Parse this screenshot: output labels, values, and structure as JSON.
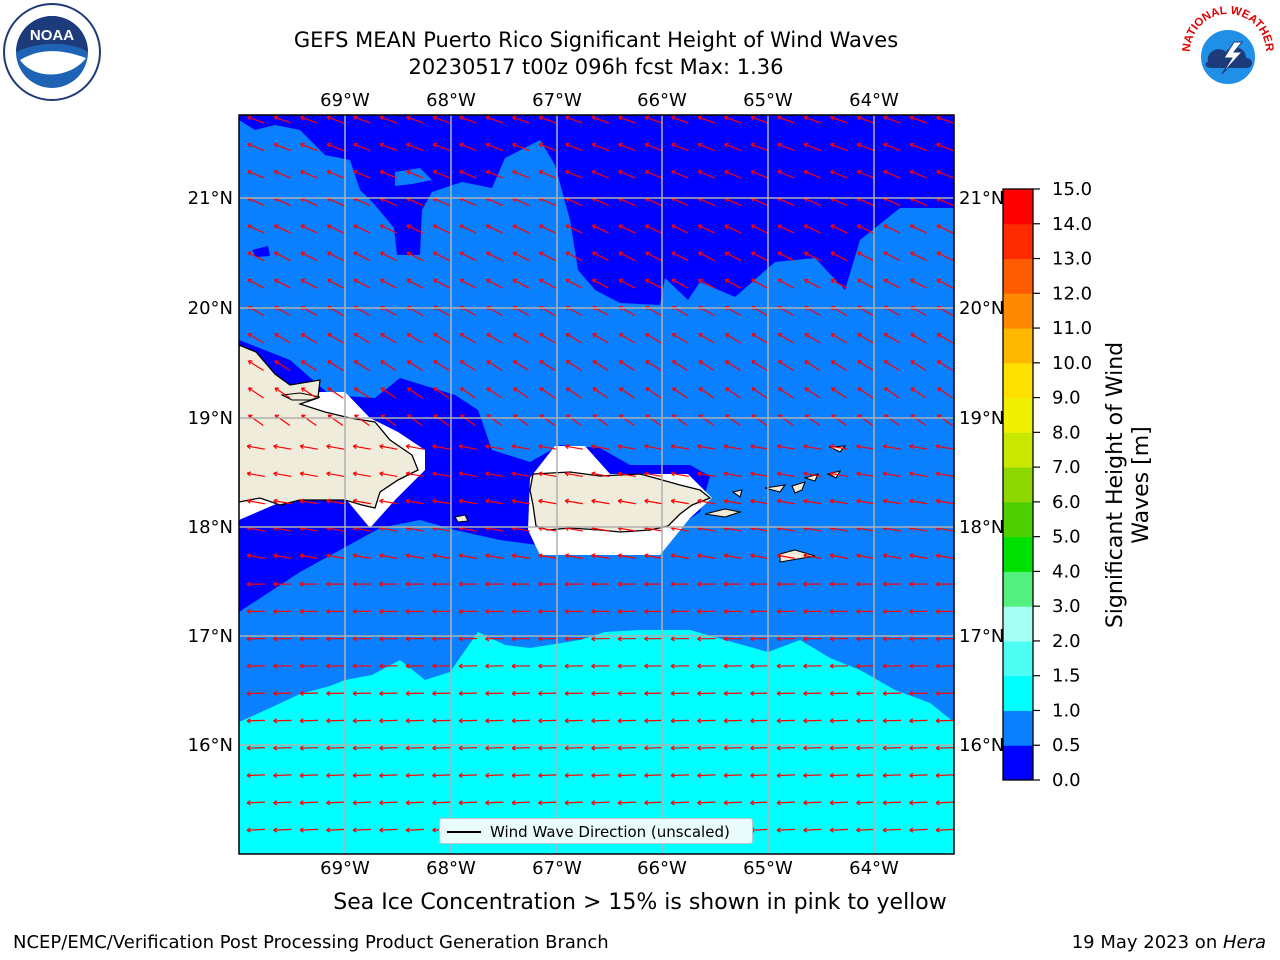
{
  "title": {
    "line1": "GEFS MEAN Puerto Rico Significant Height of Wind Waves",
    "line2": "20230517 t00z 096h fcst   Max: 1.36"
  },
  "map": {
    "lon_labels": [
      "69°W",
      "68°W",
      "67°W",
      "66°W",
      "65°W",
      "64°W"
    ],
    "lat_labels": [
      "21°N",
      "20°N",
      "19°N",
      "18°N",
      "17°N",
      "16°N"
    ],
    "legend_label": "Wind Wave Direction (unscaled)",
    "colors": {
      "band_0_0_5": "#0000ff",
      "band_0_5_1_0": "#0a80ff",
      "band_1_0_1_5": "#00ffff",
      "land": "#efecdc",
      "arrow": "#ff0000",
      "grid": "#b0b0b0"
    }
  },
  "colorbar": {
    "title": "Significant Height of Wind Waves [m]",
    "ticks": [
      "15.0",
      "14.0",
      "13.0",
      "12.0",
      "11.0",
      "10.0",
      "9.0",
      "8.0",
      "7.0",
      "6.0",
      "5.0",
      "4.0",
      "3.0",
      "2.0",
      "1.5",
      "1.0",
      "0.5",
      "0.0"
    ],
    "colors": [
      "#0000ff",
      "#0a80ff",
      "#00ffff",
      "#4dfff2",
      "#a6fff2",
      "#53f080",
      "#00e000",
      "#4ed000",
      "#8cd800",
      "#c8e800",
      "#f0f000",
      "#ffe000",
      "#ffb800",
      "#ff8a00",
      "#ff5c00",
      "#ff2a00",
      "#ff0000"
    ]
  },
  "logos": {
    "noaa_text": "NOAA",
    "nws_text": "NATIONAL WEATHER SERVICE"
  },
  "ice_note": "Sea Ice Concentration > 15% is shown in pink to yellow",
  "footer": {
    "left": "NCEP/EMC/Verification Post Processing Product Generation Branch",
    "right_prefix": "19 May 2023 on ",
    "right_host": "Hera"
  }
}
